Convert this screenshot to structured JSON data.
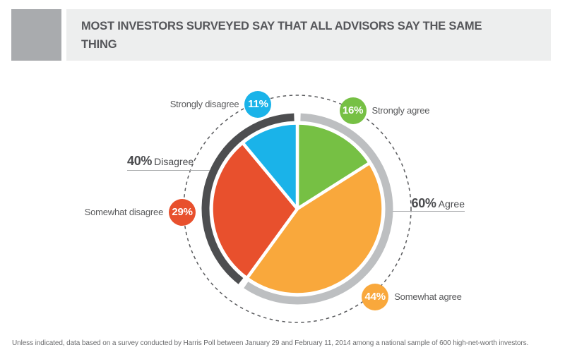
{
  "header": {
    "title": "MOST INVESTORS SURVEYED SAY THAT ALL ADVISORS SAY THE SAME THING"
  },
  "chart_data": {
    "type": "pie",
    "title": "MOST INVESTORS SURVEYED SAY THAT ALL ADVISORS SAY THE SAME THING",
    "unit": "%",
    "start_angle_deg": 0,
    "direction": "clockwise",
    "legend_position": "around-callouts",
    "slices": [
      {
        "label": "Strongly agree",
        "value": 16,
        "display": "16%",
        "color": "#76C044"
      },
      {
        "label": "Somewhat agree",
        "value": 44,
        "display": "44%",
        "color": "#F9A83C"
      },
      {
        "label": "Somewhat disagree",
        "value": 29,
        "display": "29%",
        "color": "#E8502D"
      },
      {
        "label": "Strongly disagree",
        "value": 11,
        "display": "11%",
        "color": "#1AB3E9"
      }
    ],
    "groups": [
      {
        "label": "Agree",
        "value": 60,
        "display": "60%",
        "arc_color": "#BDBFC1"
      },
      {
        "label": "Disagree",
        "value": 40,
        "display": "40%",
        "arc_color": "#4D4E50"
      }
    ]
  },
  "colors": {
    "dashed_circle": "#5A5B5E",
    "leader_line": "#A8AAAC",
    "title_bg": "#EDEEEE",
    "title_text": "#55565A",
    "logo": "#A9ABAE",
    "label_text": "#58595B",
    "badge_text": "#FFFFFF",
    "wedge_gap": "#FFFFFF"
  },
  "footer": {
    "note": "Unless indicated, data based on a survey conducted by Harris Poll between January 29 and February 11, 2014 among a national sample of 600 high-net-worth investors."
  }
}
